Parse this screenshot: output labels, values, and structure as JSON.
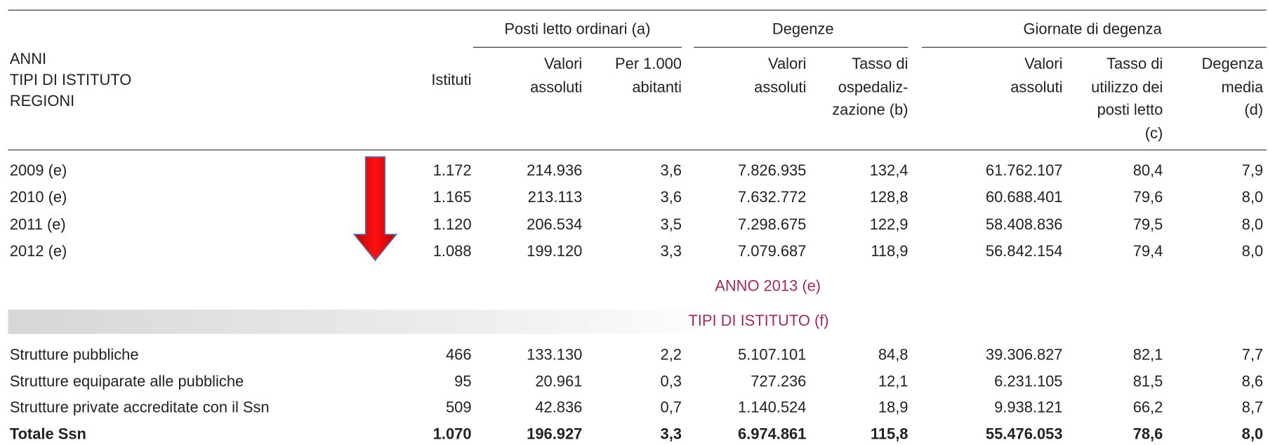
{
  "header": {
    "stub": [
      "ANNI",
      "TIPI DI ISTITUTO",
      "REGIONI"
    ],
    "groups": [
      "Posti letto ordinari (a)",
      "Degenze",
      "Giornate di degenza"
    ],
    "columns": [
      [
        "Istituti"
      ],
      [
        "Valori",
        "assoluti"
      ],
      [
        "Per 1.000",
        "abitanti"
      ],
      [
        "Valori",
        "assoluti"
      ],
      [
        "Tasso di",
        "ospedaliz-",
        "zazione (b)"
      ],
      [
        "Valori",
        "assoluti"
      ],
      [
        "Tasso di",
        "utilizzo dei",
        "posti letto",
        "(c)"
      ],
      [
        "Degenza",
        "media",
        "(d)"
      ]
    ]
  },
  "years": [
    [
      "2009 (e)",
      "1.172",
      "214.936",
      "3,6",
      "7.826.935",
      "132,4",
      "61.762.107",
      "80,4",
      "7,9"
    ],
    [
      "2010 (e)",
      "1.165",
      "213.113",
      "3,6",
      "7.632.772",
      "128,8",
      "60.688.401",
      "79,6",
      "8,0"
    ],
    [
      "2011 (e)",
      "1.120",
      "206.534",
      "3,5",
      "7.298.675",
      "122,9",
      "58.408.836",
      "79,5",
      "8,0"
    ],
    [
      "2012 (e)",
      "1.088",
      "199.120",
      "3,3",
      "7.079.687",
      "118,9",
      "56.842.154",
      "79,4",
      "8,0"
    ]
  ],
  "section_title": "ANNO 2013 (e)",
  "subsection_title": "TIPI DI ISTITUTO (f)",
  "types": [
    [
      "Strutture pubbliche",
      "466",
      "133.130",
      "2,2",
      "5.107.101",
      "84,8",
      "39.306.827",
      "82,1",
      "7,7"
    ],
    [
      "Strutture equiparate alle pubbliche",
      "95",
      "20.961",
      "0,3",
      "727.236",
      "12,1",
      "6.231.105",
      "81,5",
      "8,6"
    ],
    [
      "Strutture private accreditate con il Ssn",
      "509",
      "42.836",
      "0,7",
      "1.140.524",
      "18,9",
      "9.938.121",
      "66,2",
      "8,7"
    ]
  ],
  "total": [
    "Totale Ssn",
    "1.070",
    "196.927",
    "3,3",
    "6.974.861",
    "115,8",
    "55.476.053",
    "78,6",
    "8,0"
  ]
}
